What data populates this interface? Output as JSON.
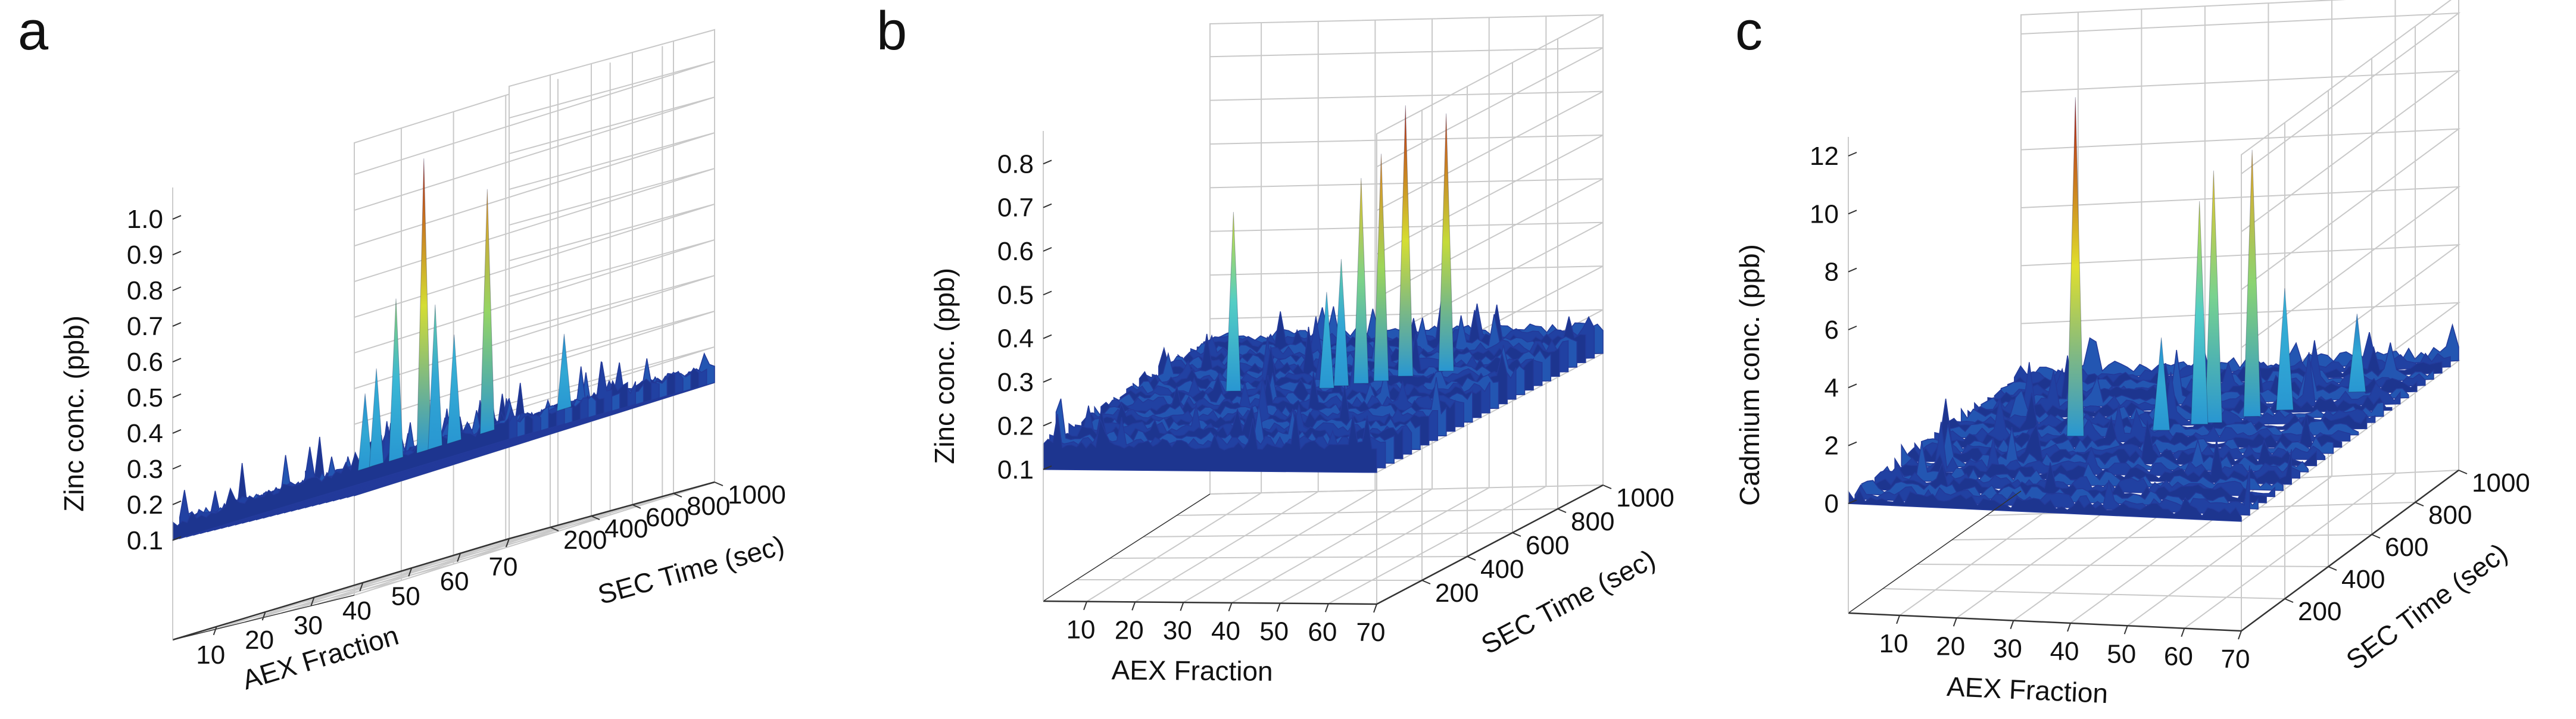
{
  "panels": [
    {
      "letter": "a",
      "zlabel": "Zinc conc. (ppb)",
      "xlabel": "AEX Fraction",
      "ylabel": "SEC Time (sec)",
      "zticks": [
        "0.1",
        "0.2",
        "0.3",
        "0.4",
        "0.5",
        "0.6",
        "0.7",
        "0.8",
        "0.9",
        "1.0"
      ],
      "xticks": [
        "10",
        "20",
        "30",
        "40",
        "50",
        "60",
        "70"
      ],
      "yticks": [
        "200",
        "400",
        "600",
        "800",
        "1000"
      ]
    },
    {
      "letter": "b",
      "zlabel": "Zinc conc. (ppb)",
      "xlabel": "AEX Fraction",
      "ylabel": "SEC Time (sec)",
      "zticks": [
        "0.1",
        "0.2",
        "0.3",
        "0.4",
        "0.5",
        "0.6",
        "0.7",
        "0.8"
      ],
      "xticks": [
        "10",
        "20",
        "30",
        "40",
        "50",
        "60",
        "70"
      ],
      "yticks": [
        "200",
        "400",
        "600",
        "800",
        "1000"
      ]
    },
    {
      "letter": "c",
      "zlabel": "Cadmium conc. (ppb)",
      "xlabel": "AEX Fraction",
      "ylabel": "SEC Time (sec)",
      "zticks": [
        "0",
        "2",
        "4",
        "6",
        "8",
        "10",
        "12"
      ],
      "xticks": [
        "10",
        "20",
        "30",
        "40",
        "50",
        "60",
        "70"
      ],
      "yticks": [
        "200",
        "400",
        "600",
        "800",
        "1000"
      ]
    }
  ],
  "chart_data": [
    {
      "type": "surface",
      "title": "a",
      "xlabel": "AEX Fraction",
      "ylabel": "SEC Time (sec)",
      "zlabel": "Zinc conc. (ppb)",
      "xlim": [
        1,
        70
      ],
      "ylim": [
        0,
        1000
      ],
      "zlim": [
        0.1,
        1.0
      ],
      "grid": true,
      "colormap": "jet",
      "colors": {
        "low": "#1b2a7a",
        "mid": "#35c7d8",
        "high": "#c41a10"
      },
      "peaks": [
        {
          "x": 32,
          "y": 520,
          "z": 0.97
        },
        {
          "x": 43,
          "y": 560,
          "z": 0.83
        },
        {
          "x": 28,
          "y": 480,
          "z": 0.6
        },
        {
          "x": 35,
          "y": 500,
          "z": 0.55
        },
        {
          "x": 38,
          "y": 520,
          "z": 0.45
        },
        {
          "x": 26,
          "y": 430,
          "z": 0.42
        },
        {
          "x": 23,
          "y": 450,
          "z": 0.36
        },
        {
          "x": 55,
          "y": 640,
          "z": 0.36
        }
      ],
      "baseline": 0.15
    },
    {
      "type": "surface",
      "title": "b",
      "xlabel": "AEX Fraction",
      "ylabel": "SEC Time (sec)",
      "zlabel": "Zinc conc. (ppb)",
      "xlim": [
        1,
        70
      ],
      "ylim": [
        0,
        1000
      ],
      "zlim": [
        0.1,
        0.8
      ],
      "grid": true,
      "colormap": "jet",
      "colors": {
        "low": "#1b2a7a",
        "mid": "#35c7d8",
        "high": "#c41a10"
      },
      "peaks": [
        {
          "x": 22,
          "y": 480,
          "z": 0.57
        },
        {
          "x": 44,
          "y": 540,
          "z": 0.63
        },
        {
          "x": 47,
          "y": 560,
          "z": 0.68
        },
        {
          "x": 50,
          "y": 600,
          "z": 0.78
        },
        {
          "x": 56,
          "y": 640,
          "z": 0.75
        },
        {
          "x": 41,
          "y": 520,
          "z": 0.45
        },
        {
          "x": 39,
          "y": 500,
          "z": 0.38
        }
      ],
      "baseline": 0.16
    },
    {
      "type": "surface",
      "title": "c",
      "xlabel": "AEX Fraction",
      "ylabel": "SEC Time (sec)",
      "zlabel": "Cadmium conc. (ppb)",
      "xlim": [
        1,
        70
      ],
      "ylim": [
        0,
        1000
      ],
      "zlim": [
        0,
        12
      ],
      "grid": true,
      "colormap": "jet",
      "colors": {
        "low": "#1b2a7a",
        "mid": "#35c7d8",
        "high": "#c41a10"
      },
      "peaks": [
        {
          "x": 25,
          "y": 480,
          "z": 12.0
        },
        {
          "x": 43,
          "y": 560,
          "z": 8.0
        },
        {
          "x": 45,
          "y": 570,
          "z": 9.0
        },
        {
          "x": 50,
          "y": 610,
          "z": 9.5
        },
        {
          "x": 54,
          "y": 650,
          "z": 4.5
        },
        {
          "x": 38,
          "y": 520,
          "z": 3.5
        },
        {
          "x": 62,
          "y": 760,
          "z": 3.0
        }
      ],
      "baseline": 0.3
    }
  ]
}
